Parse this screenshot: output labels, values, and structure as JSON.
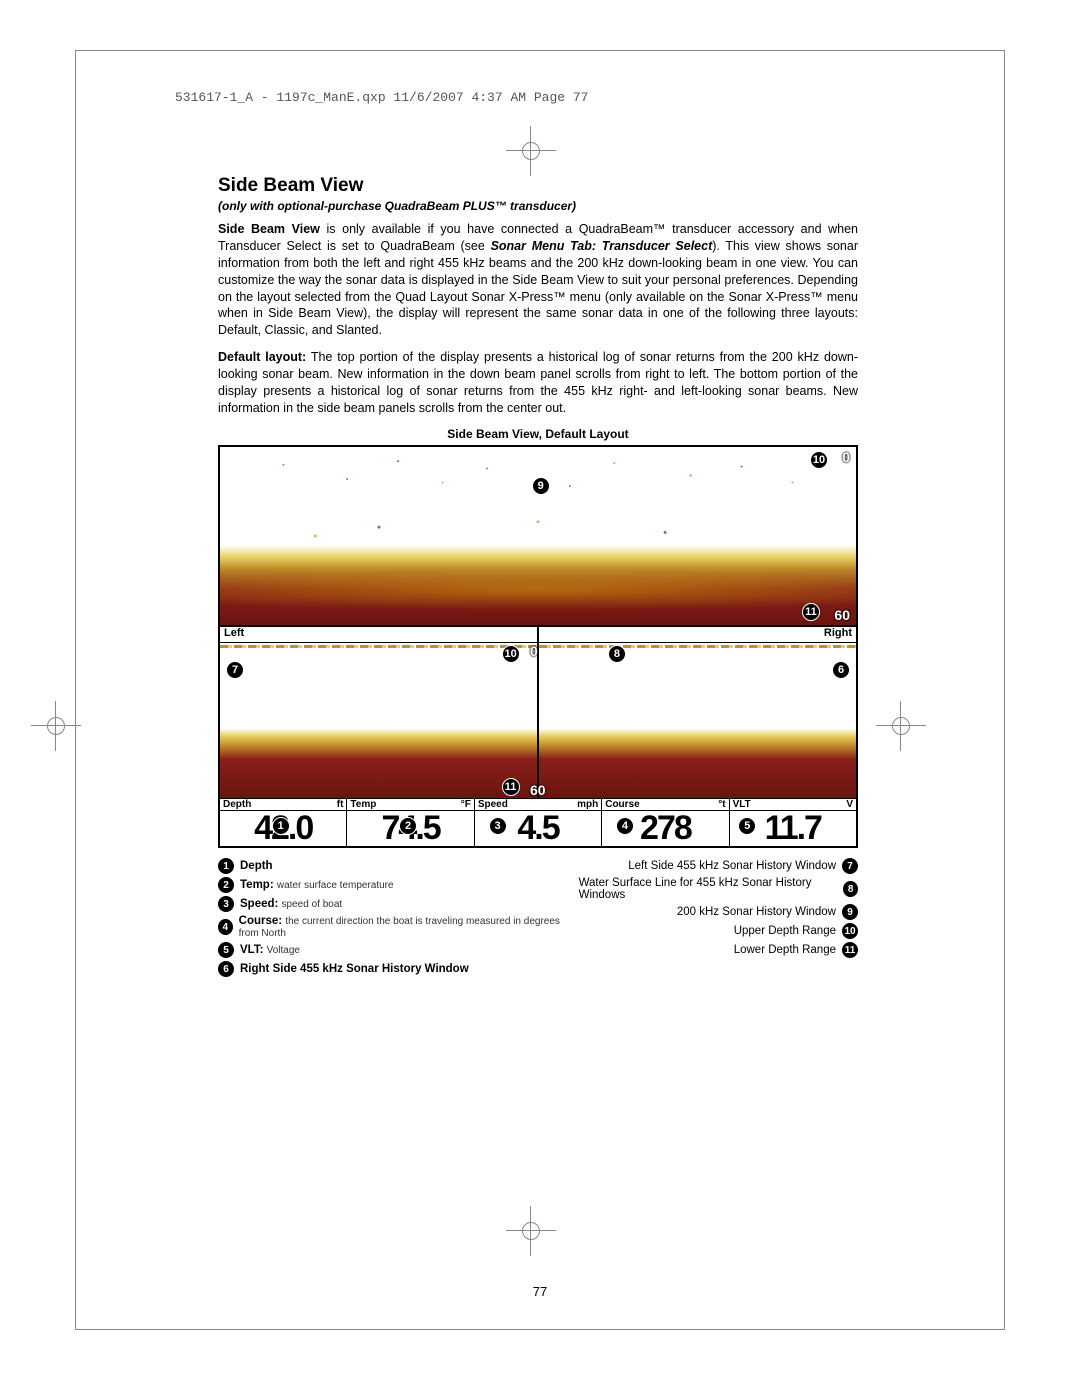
{
  "header_slug": "531617-1_A - 1197c_ManE.qxp  11/6/2007  4:37 AM  Page 77",
  "title": "Side Beam View",
  "subtitle": "(only with optional-purchase QuadraBeam PLUS™ transducer)",
  "para1_lead": "Side Beam View",
  "para1_rest": " is only available if you have connected a QuadraBeam™ transducer accessory and when Transducer Select is set to QuadraBeam (see ",
  "para1_ref": "Sonar Menu Tab: Transducer Select",
  "para1_rest2": "). This view shows sonar information from both the left and right 455 kHz beams and the 200 kHz down-looking beam in one view. You can customize the way the sonar data is displayed in the Side Beam View to suit your personal preferences. Depending on the layout selected from the Quad Layout Sonar X-Press™ menu (only available on the Sonar X-Press™ menu when in Side Beam View), the display will represent the same sonar data in one of the following three layouts: Default, Classic, and Slanted.",
  "para2_lead": "Default layout:",
  "para2_rest": " The top portion of the display presents a historical log of sonar returns from the 200 kHz down-looking sonar beam. New information in the down beam panel scrolls from right to left. The bottom portion of the display presents a historical log of sonar returns from the 455 kHz right- and left-looking sonar beams. New information in the side beam panels scrolls from the center out.",
  "caption": "Side Beam View, Default Layout",
  "sonar": {
    "left_label": "Left",
    "right_label": "Right",
    "upper_0": "0",
    "upper_60": "60",
    "lower_0": "0",
    "lower_60": "60",
    "readouts": [
      {
        "label": "Depth",
        "unit": "ft",
        "value": "42.0"
      },
      {
        "label": "Temp",
        "unit": "°F",
        "value": "74.5"
      },
      {
        "label": "Speed",
        "unit": "mph",
        "value": "4.5"
      },
      {
        "label": "Course",
        "unit": "°t",
        "value": "278"
      },
      {
        "label": "VLT",
        "unit": "V",
        "value": "11.7"
      }
    ],
    "colors": {
      "water": "#ffffff",
      "mid": "#e8d060",
      "sand": "#c0902a",
      "clay": "#8a1f1a",
      "deep": "#6a140f",
      "blue": "#3875a8"
    }
  },
  "legend_left": [
    {
      "n": "1",
      "bold": "Depth",
      "sub": ""
    },
    {
      "n": "2",
      "bold": "Temp:",
      "sub": "water surface temperature"
    },
    {
      "n": "3",
      "bold": "Speed:",
      "sub": "speed of boat"
    },
    {
      "n": "4",
      "bold": "Course:",
      "sub": "the current direction the boat is traveling measured in degrees from North"
    },
    {
      "n": "5",
      "bold": "VLT:",
      "sub": "Voltage"
    },
    {
      "n": "6",
      "bold": "Right Side 455 kHz Sonar History Window",
      "sub": ""
    }
  ],
  "legend_right": [
    {
      "n": "7",
      "text": "Left Side 455 kHz Sonar History Window"
    },
    {
      "n": "8",
      "text": "Water Surface Line for 455 kHz Sonar History Windows"
    },
    {
      "n": "9",
      "text": "200 kHz Sonar History Window"
    },
    {
      "n": "10",
      "text": "Upper Depth Range"
    },
    {
      "n": "11",
      "text": "Lower Depth Range"
    }
  ],
  "page_number": "77"
}
